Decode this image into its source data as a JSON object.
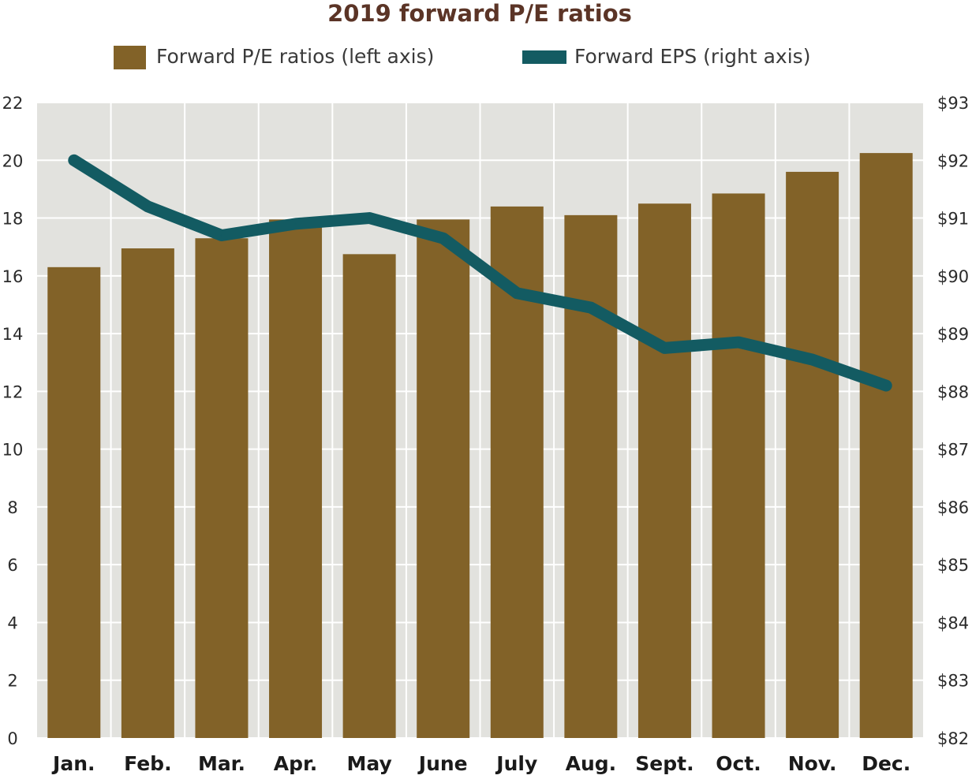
{
  "chart_data": {
    "type": "bar",
    "title": "2019 forward P/E ratios",
    "categories": [
      "Jan.",
      "Feb.",
      "Mar.",
      "Apr.",
      "May",
      "June",
      "July",
      "Aug.",
      "Sept.",
      "Oct.",
      "Nov.",
      "Dec."
    ],
    "series": [
      {
        "name": "Forward P/E ratios (left axis)",
        "type": "bar",
        "axis": "left",
        "values": [
          16.3,
          16.95,
          17.3,
          17.95,
          16.75,
          17.95,
          18.4,
          18.1,
          18.5,
          18.85,
          19.6,
          20.25
        ]
      },
      {
        "name": "Forward EPS (right axis)",
        "type": "line",
        "axis": "right",
        "values": [
          92.0,
          91.2,
          90.7,
          90.9,
          91.0,
          90.65,
          89.7,
          89.45,
          88.75,
          88.85,
          88.55,
          88.1
        ]
      }
    ],
    "left_axis": {
      "min": 0,
      "max": 22,
      "ticks": [
        0,
        2,
        4,
        6,
        8,
        10,
        12,
        14,
        16,
        18,
        20,
        22
      ]
    },
    "right_axis": {
      "min": 82,
      "max": 93,
      "ticks": [
        "$82",
        "$83",
        "$84",
        "$85",
        "$86",
        "$87",
        "$88",
        "$89",
        "$90",
        "$91",
        "$92",
        "$93"
      ]
    },
    "legend_position": "top-center",
    "grid": true
  },
  "colors": {
    "title": "#5b3426",
    "bar": "#826228",
    "line": "#135b62",
    "plot_bg": "#e2e2de",
    "grid": "#ffffff"
  }
}
